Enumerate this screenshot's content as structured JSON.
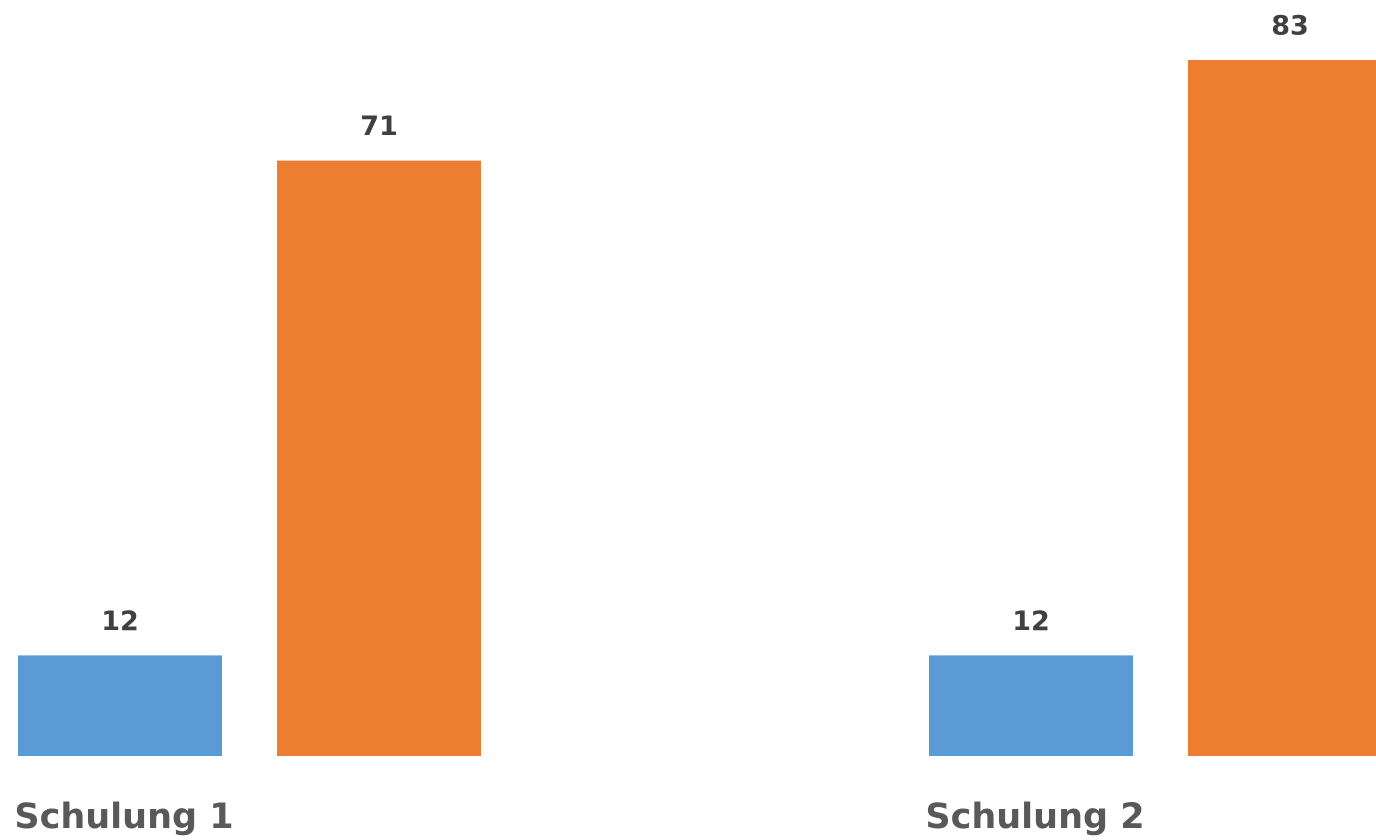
{
  "chart_data": {
    "type": "bar",
    "categories": [
      "Schulung 1",
      "Schulung 2"
    ],
    "series": [
      {
        "color": "#5b9bd5",
        "values": [
          12,
          12
        ]
      },
      {
        "color": "#ed7d31",
        "values": [
          71,
          83
        ]
      }
    ]
  }
}
